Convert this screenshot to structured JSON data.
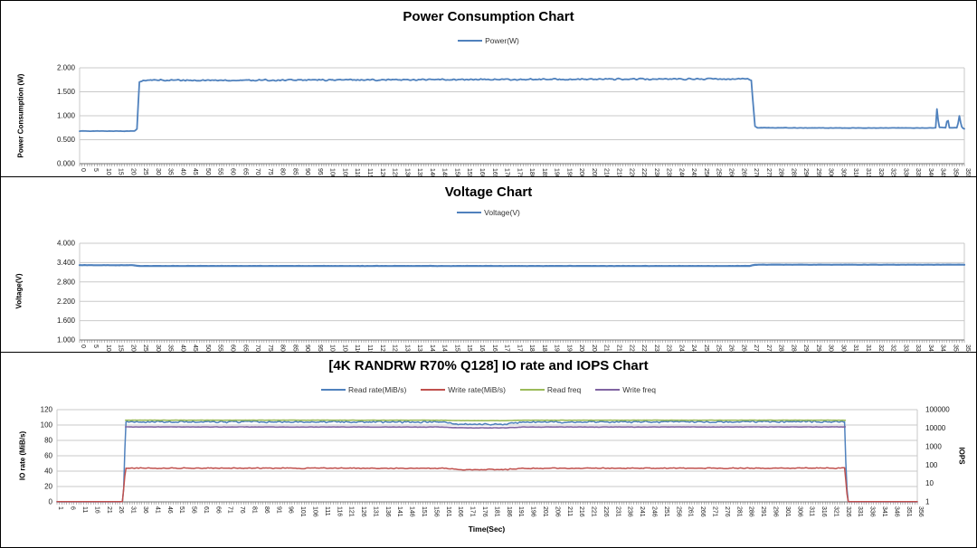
{
  "colors": {
    "blue": "#4F81BD",
    "red": "#C0504D",
    "green": "#9BBB59",
    "purple": "#8064A2",
    "gridline": "#C9C9C9",
    "axis_line": "#6E6E6E",
    "tick_text": "#1a1a1a"
  },
  "chart_data": [
    {
      "type": "line",
      "title": "Power Consumption Chart",
      "ylabel": "Power Consumption (W)",
      "xlabel": "",
      "legend_position": "top",
      "grid": true,
      "legend": [
        {
          "label": "Power(W)",
          "color": "#4F81BD"
        }
      ],
      "y_axis": {
        "min": 0,
        "max": 2,
        "tick_labels": [
          "0.000",
          "0.500",
          "1.000",
          "1.500",
          "2.000"
        ]
      },
      "x_axis": {
        "min": 0,
        "max": 355,
        "tick_start": 0,
        "tick_step": 5,
        "tick_end": 355
      },
      "series": [
        {
          "name": "Power(W)",
          "color": "#4F81BD",
          "width": 1.8,
          "axis": "left",
          "points": [
            [
              0,
              0.68
            ],
            [
              22,
              0.68
            ],
            [
              23,
              0.72
            ],
            [
              24,
              1.7
            ],
            [
              25.5,
              1.74
            ],
            [
              60,
              1.74
            ],
            [
              120,
              1.75
            ],
            [
              200,
              1.76
            ],
            [
              268,
              1.77
            ],
            [
              269.5,
              1.74
            ],
            [
              271,
              0.78
            ],
            [
              272,
              0.75
            ],
            [
              300,
              0.745
            ],
            [
              342,
              0.745
            ],
            [
              343.5,
              0.75
            ],
            [
              344,
              1.14
            ],
            [
              344.8,
              0.76
            ],
            [
              347.5,
              0.75
            ],
            [
              348.3,
              0.96
            ],
            [
              349,
              0.75
            ],
            [
              352.2,
              0.75
            ],
            [
              353,
              1.0
            ],
            [
              353.8,
              0.78
            ],
            [
              354.5,
              0.74
            ],
            [
              355,
              0.73
            ]
          ],
          "noise": [
            [
              0,
              0.004
            ],
            [
              21,
              0.004
            ],
            [
              24,
              0.018
            ],
            [
              268,
              0.018
            ],
            [
              271,
              0.004
            ],
            [
              355,
              0.004
            ]
          ]
        }
      ]
    },
    {
      "type": "line",
      "title": "Voltage Chart",
      "ylabel": "Voltage(V)",
      "xlabel": "",
      "legend_position": "top",
      "grid": true,
      "legend": [
        {
          "label": "Voltage(V)",
          "color": "#4F81BD"
        }
      ],
      "y_axis": {
        "min": 1,
        "max": 4,
        "tick_labels": [
          "1.000",
          "1.600",
          "2.200",
          "2.800",
          "3.400",
          "4.000"
        ]
      },
      "x_axis": {
        "min": 0,
        "max": 355,
        "tick_start": 0,
        "tick_step": 5,
        "tick_end": 355
      },
      "series": [
        {
          "name": "Voltage(V)",
          "color": "#4F81BD",
          "width": 2.2,
          "axis": "left",
          "points": [
            [
              0,
              3.32
            ],
            [
              21,
              3.32
            ],
            [
              24,
              3.295
            ],
            [
              269,
              3.295
            ],
            [
              271,
              3.335
            ],
            [
              355,
              3.335
            ]
          ],
          "noise": [
            [
              0,
              0.004
            ],
            [
              355,
              0.004
            ]
          ]
        }
      ]
    },
    {
      "type": "line",
      "title": "[4K RANDRW R70% Q128] IO rate and IOPS Chart",
      "ylabel": "IO rate (MiB/s)",
      "y2label": "IOPS",
      "xlabel": "Time(Sec)",
      "legend_position": "top",
      "grid": true,
      "legend": [
        {
          "label": "Read rate(MiB/s)",
          "color": "#4F81BD"
        },
        {
          "label": "Write rate(MiB/s)",
          "color": "#C0504D"
        },
        {
          "label": "Read freq",
          "color": "#9BBB59"
        },
        {
          "label": "Write freq",
          "color": "#8064A2"
        }
      ],
      "y_axis": {
        "min": 0,
        "max": 120,
        "tick_labels": [
          "0",
          "20",
          "40",
          "60",
          "80",
          "100",
          "120"
        ]
      },
      "y2_axis": {
        "min": 1,
        "max": 100000,
        "log": true,
        "tick_labels": [
          "1",
          "10",
          "100",
          "1000",
          "10000",
          "100000"
        ]
      },
      "x_axis": {
        "min": 1,
        "max": 356,
        "tick_start": 1,
        "tick_step": 5,
        "tick_end": 356
      },
      "series": [
        {
          "name": "Read rate(MiB/s)",
          "color": "#4F81BD",
          "width": 1.5,
          "axis": "left",
          "points": [
            [
              1,
              0
            ],
            [
              28,
              0
            ],
            [
              28.6,
              20
            ],
            [
              29.3,
              104
            ],
            [
              80,
              104
            ],
            [
              160,
              103.8
            ],
            [
              168,
              100.8
            ],
            [
              186,
              100.8
            ],
            [
              193,
              103.8
            ],
            [
              260,
              104
            ],
            [
              324,
              104.3
            ],
            [
              326,
              104
            ],
            [
              326.6,
              40
            ],
            [
              327.3,
              0
            ],
            [
              356,
              0
            ]
          ],
          "noise": [
            [
              1,
              0.05
            ],
            [
              27,
              0.05
            ],
            [
              30,
              1.3
            ],
            [
              325,
              1.3
            ],
            [
              328,
              0.05
            ],
            [
              356,
              0.05
            ]
          ]
        },
        {
          "name": "Write rate(MiB/s)",
          "color": "#C0504D",
          "width": 1.5,
          "axis": "left",
          "points": [
            [
              1,
              0.3
            ],
            [
              28,
              0.3
            ],
            [
              29.3,
              44
            ],
            [
              160,
              43.6
            ],
            [
              168,
              42
            ],
            [
              186,
              42
            ],
            [
              193,
              43.6
            ],
            [
              324,
              44
            ],
            [
              326,
              44
            ],
            [
              327.3,
              0.3
            ],
            [
              356,
              0.3
            ]
          ],
          "noise": [
            [
              1,
              0.05
            ],
            [
              27,
              0.05
            ],
            [
              30,
              0.7
            ],
            [
              325,
              0.7
            ],
            [
              328,
              0.05
            ],
            [
              356,
              0.05
            ]
          ]
        },
        {
          "name": "Read freq",
          "color": "#9BBB59",
          "width": 1.6,
          "axis": "right",
          "points": [
            [
              29.3,
              26800
            ],
            [
              160,
              26600
            ],
            [
              168,
              25400
            ],
            [
              186,
              25400
            ],
            [
              193,
              26600
            ],
            [
              324,
              26800
            ],
            [
              326.3,
              26800
            ]
          ],
          "noise": [
            [
              29,
              400
            ],
            [
              326,
              400
            ]
          ]
        },
        {
          "name": "Write freq",
          "color": "#8064A2",
          "width": 1.6,
          "axis": "right",
          "points": [
            [
              29.3,
              11600
            ],
            [
              160,
              11400
            ],
            [
              168,
              10300
            ],
            [
              186,
              10300
            ],
            [
              193,
              11400
            ],
            [
              324,
              11600
            ],
            [
              326.3,
              11600
            ]
          ],
          "noise": [
            [
              29,
              280
            ],
            [
              326,
              280
            ]
          ]
        }
      ]
    }
  ]
}
